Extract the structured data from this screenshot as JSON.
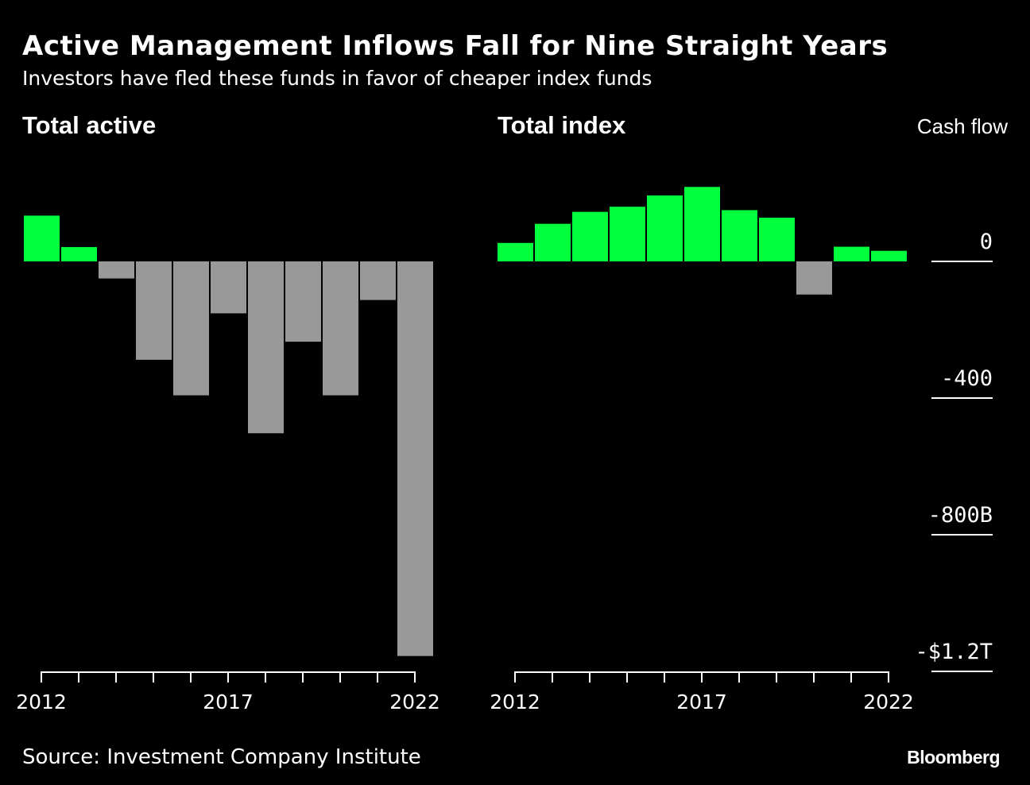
{
  "title": "Active Management Inflows Fall for Nine Straight Years",
  "subtitle": "Investors have fled these funds in favor of cheaper index funds",
  "source": "Source: Investment Company Institute",
  "brand": "Bloomberg",
  "axis_title": "Cash flow",
  "colors": {
    "positive": "#00ff3c",
    "negative": "#999999",
    "background": "#000000",
    "text": "#ffffff"
  },
  "chart_data": [
    {
      "type": "bar",
      "title": "Total active",
      "ylabel": "Cash flow",
      "categories": [
        2012,
        2013,
        2014,
        2015,
        2016,
        2017,
        2018,
        2019,
        2020,
        2021,
        2022
      ],
      "x_tick_labels": [
        "2012",
        "2017",
        "2022"
      ],
      "values": [
        134,
        42,
        -50,
        -288,
        -392,
        -152,
        -503,
        -235,
        -392,
        -113,
        -1155
      ],
      "ylim": [
        -1200,
        300
      ],
      "yticks": [
        "0",
        "-400",
        "-800B",
        "-$1.2T"
      ]
    },
    {
      "type": "bar",
      "title": "Total index",
      "ylabel": "Cash flow",
      "categories": [
        2012,
        2013,
        2014,
        2015,
        2016,
        2017,
        2018,
        2019,
        2020,
        2021,
        2022
      ],
      "x_tick_labels": [
        "2012",
        "2017",
        "2022"
      ],
      "values": [
        54,
        110,
        145,
        160,
        193,
        218,
        150,
        128,
        -97,
        43,
        31
      ],
      "ylim": [
        -1200,
        300
      ],
      "yticks": [
        "0",
        "-400",
        "-800B",
        "-$1.2T"
      ]
    }
  ]
}
